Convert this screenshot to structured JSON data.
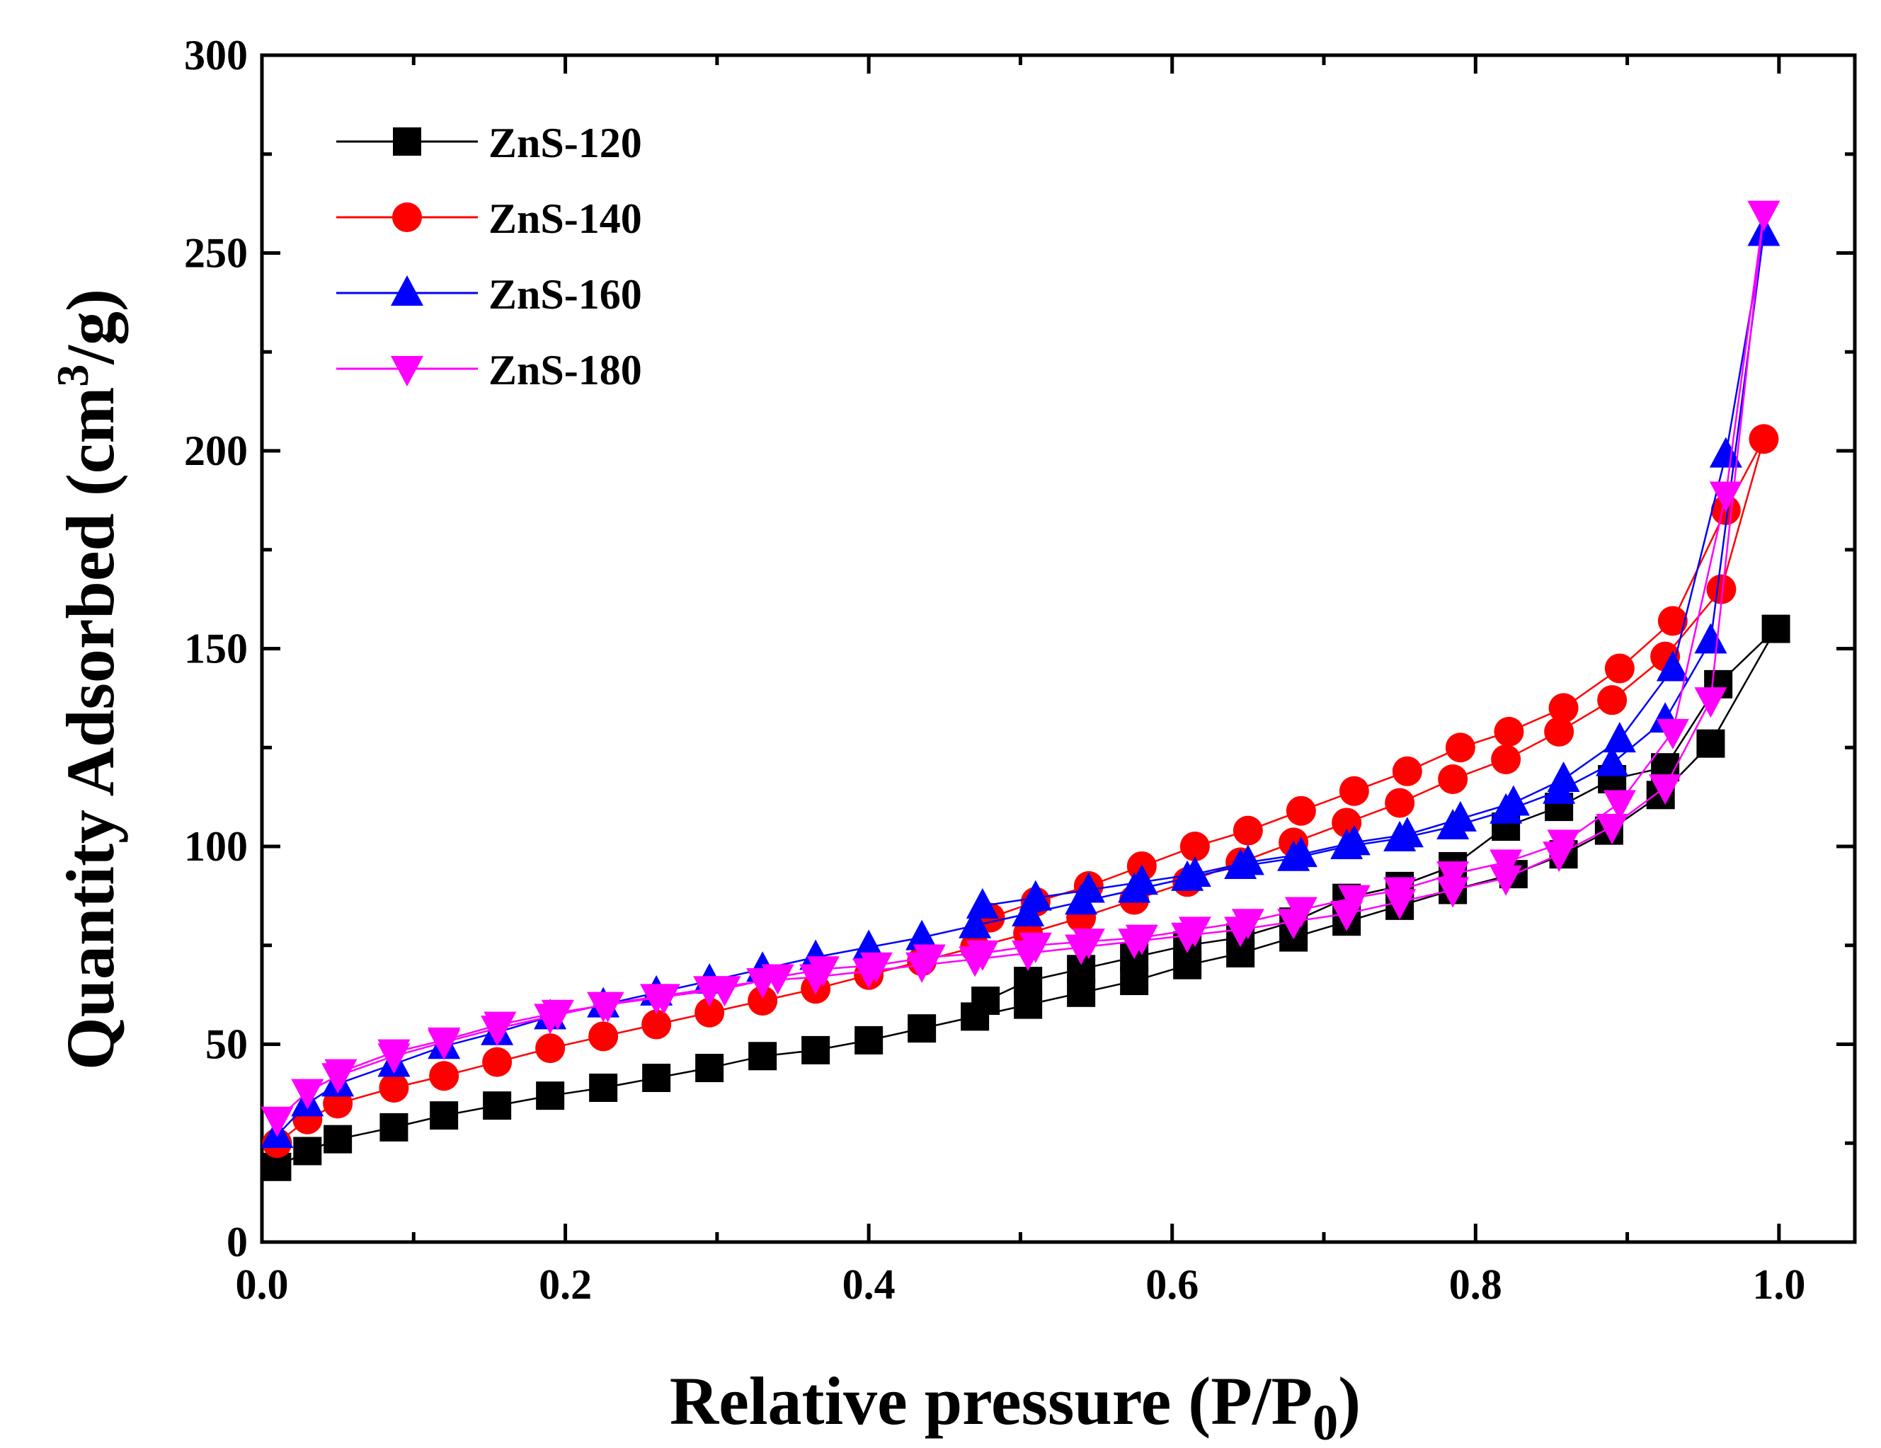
{
  "chart_data": {
    "type": "line",
    "xlabel": "Relative pressure (P/P",
    "xlabel_sub": "0",
    "xlabel_close": ")",
    "ylabel": "Quantity Adsorbed (cm",
    "ylabel_sup": "3",
    "ylabel_close": "/g)",
    "xlim": [
      0,
      1.05
    ],
    "ylim": [
      0,
      300
    ],
    "x_ticks": [
      0.0,
      0.2,
      0.4,
      0.6,
      0.8,
      1.0
    ],
    "x_tick_labels": [
      "0.0",
      "0.2",
      "0.4",
      "0.6",
      "0.8",
      "1.0"
    ],
    "y_ticks": [
      0,
      50,
      100,
      150,
      200,
      250,
      300
    ],
    "y_tick_labels": [
      "0",
      "50",
      "100",
      "150",
      "200",
      "250",
      "300"
    ],
    "legend_position": "top-left",
    "series": [
      {
        "name": "ZnS-120",
        "color": "#000000",
        "marker": "square",
        "x": [
          0.01,
          0.03,
          0.05,
          0.087,
          0.12,
          0.155,
          0.19,
          0.225,
          0.26,
          0.295,
          0.33,
          0.365,
          0.4,
          0.435,
          0.47,
          0.505,
          0.54,
          0.575,
          0.61,
          0.645,
          0.68,
          0.715,
          0.75,
          0.785,
          0.825,
          0.858,
          0.888,
          0.922,
          0.955,
          0.998,
          0.96,
          0.925,
          0.89,
          0.855,
          0.82,
          0.785,
          0.75,
          0.715,
          0.68,
          0.645,
          0.61,
          0.575,
          0.54,
          0.505,
          0.477
        ],
        "y": [
          19,
          23,
          26,
          29,
          32,
          34.5,
          37,
          39,
          41.5,
          44,
          47,
          48.5,
          51,
          54,
          57,
          60,
          63,
          66,
          70,
          73,
          77,
          81,
          85,
          89,
          93,
          98,
          104,
          113,
          126,
          155,
          141,
          120,
          117,
          110,
          105,
          95,
          90,
          87,
          81,
          77,
          75,
          72,
          69,
          66,
          61
        ]
      },
      {
        "name": "ZnS-140",
        "color": "#ff0000",
        "marker": "circle",
        "x": [
          0.01,
          0.03,
          0.05,
          0.087,
          0.12,
          0.155,
          0.19,
          0.225,
          0.26,
          0.295,
          0.33,
          0.365,
          0.4,
          0.435,
          0.47,
          0.505,
          0.54,
          0.575,
          0.61,
          0.645,
          0.68,
          0.715,
          0.75,
          0.785,
          0.82,
          0.855,
          0.89,
          0.925,
          0.962,
          0.99,
          0.965,
          0.93,
          0.895,
          0.858,
          0.822,
          0.79,
          0.755,
          0.72,
          0.685,
          0.65,
          0.615,
          0.58,
          0.545,
          0.51,
          0.48
        ],
        "y": [
          25,
          31,
          35,
          39,
          42,
          45.5,
          49,
          52,
          55,
          58,
          61,
          64,
          67.5,
          71,
          74.5,
          78,
          82,
          86.5,
          91,
          96,
          101,
          106,
          111,
          117,
          122,
          129,
          137,
          148,
          165,
          203,
          185,
          157,
          145,
          135,
          129,
          125,
          119,
          114,
          109,
          104,
          100,
          95,
          90,
          86,
          82
        ]
      },
      {
        "name": "ZnS-160",
        "color": "#0000ff",
        "marker": "triangle-up",
        "x": [
          0.01,
          0.03,
          0.05,
          0.087,
          0.12,
          0.155,
          0.19,
          0.225,
          0.26,
          0.295,
          0.33,
          0.365,
          0.4,
          0.435,
          0.47,
          0.505,
          0.54,
          0.575,
          0.61,
          0.645,
          0.68,
          0.715,
          0.75,
          0.785,
          0.82,
          0.855,
          0.89,
          0.925,
          0.955,
          0.99,
          0.965,
          0.93,
          0.895,
          0.858,
          0.825,
          0.79,
          0.755,
          0.72,
          0.685,
          0.65,
          0.615,
          0.58,
          0.545,
          0.51,
          0.475
        ],
        "y": [
          27,
          35,
          40,
          45,
          49.5,
          53,
          57,
          60,
          63,
          66,
          69,
          72,
          74.5,
          77,
          80,
          83,
          86,
          89,
          92,
          95,
          97,
          100,
          102,
          105,
          109,
          114,
          121,
          132,
          152,
          255,
          199,
          145,
          127,
          117,
          111,
          107,
          103,
          101,
          98,
          96,
          93,
          91,
          89,
          87,
          85
        ]
      },
      {
        "name": "ZnS-180",
        "color": "#ff00ff",
        "marker": "triangle-down",
        "x": [
          0.01,
          0.03,
          0.05,
          0.087,
          0.12,
          0.155,
          0.19,
          0.225,
          0.26,
          0.295,
          0.33,
          0.365,
          0.4,
          0.435,
          0.47,
          0.505,
          0.54,
          0.575,
          0.61,
          0.645,
          0.68,
          0.715,
          0.75,
          0.785,
          0.82,
          0.855,
          0.89,
          0.925,
          0.955,
          0.99,
          0.965,
          0.93,
          0.895,
          0.858,
          0.82,
          0.785,
          0.75,
          0.72,
          0.685,
          0.65,
          0.615,
          0.58,
          0.545,
          0.51,
          0.475,
          0.44,
          0.405,
          0.37,
          0.34,
          0.305,
          0.265,
          0.228,
          0.195,
          0.157,
          0.12,
          0.087,
          0.052
        ],
        "y": [
          31,
          38,
          42,
          47,
          50.5,
          54,
          57,
          60,
          62,
          64,
          66,
          67,
          68.5,
          70,
          71.5,
          73,
          74.5,
          76,
          77.5,
          79,
          81,
          83,
          86,
          89,
          92,
          98,
          105,
          115,
          137,
          260,
          189,
          129,
          111,
          101,
          96,
          93,
          89,
          87,
          84,
          81,
          79,
          77,
          76,
          75,
          73,
          72,
          70,
          69,
          67,
          64,
          62,
          60,
          58,
          55,
          51,
          48,
          43
        ]
      }
    ]
  }
}
